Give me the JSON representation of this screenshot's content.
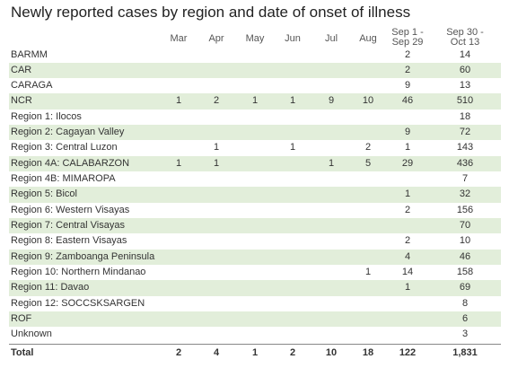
{
  "header": {
    "title": "Newly reported cases by region and date of onset of illness"
  },
  "table": {
    "columns": [
      "Mar",
      "Apr",
      "May",
      "Jun",
      "Jul",
      "Aug",
      "Sep 1 - Sep 29",
      "Sep 30 - Oct 13"
    ],
    "rows": [
      [
        "BARMM",
        null,
        null,
        null,
        null,
        null,
        null,
        2,
        14
      ],
      [
        "CAR",
        null,
        null,
        null,
        null,
        null,
        null,
        2,
        60
      ],
      [
        "CARAGA",
        null,
        null,
        null,
        null,
        null,
        null,
        9,
        13
      ],
      [
        "NCR",
        1,
        2,
        1,
        1,
        9,
        10,
        46,
        510
      ],
      [
        "Region 1: Ilocos",
        null,
        null,
        null,
        null,
        null,
        null,
        null,
        18
      ],
      [
        "Region 2: Cagayan Valley",
        null,
        null,
        null,
        null,
        null,
        null,
        9,
        72
      ],
      [
        "Region 3: Central Luzon",
        null,
        1,
        null,
        1,
        null,
        2,
        1,
        143
      ],
      [
        "Region 4A: CALABARZON",
        1,
        1,
        null,
        null,
        1,
        5,
        29,
        436
      ],
      [
        "Region 4B: MIMAROPA",
        null,
        null,
        null,
        null,
        null,
        null,
        null,
        7
      ],
      [
        "Region 5: Bicol",
        null,
        null,
        null,
        null,
        null,
        null,
        1,
        32
      ],
      [
        "Region 6: Western Visayas",
        null,
        null,
        null,
        null,
        null,
        null,
        2,
        156
      ],
      [
        "Region 7: Central Visayas",
        null,
        null,
        null,
        null,
        null,
        null,
        null,
        70
      ],
      [
        "Region 8: Eastern Visayas",
        null,
        null,
        null,
        null,
        null,
        null,
        2,
        10
      ],
      [
        "Region 9: Zamboanga Peninsula",
        null,
        null,
        null,
        null,
        null,
        null,
        4,
        46
      ],
      [
        "Region 10: Northern Mindanao",
        null,
        null,
        null,
        null,
        null,
        1,
        14,
        158
      ],
      [
        "Region 11: Davao",
        null,
        null,
        null,
        null,
        null,
        null,
        1,
        69
      ],
      [
        "Region 12: SOCCSKSARGEN",
        null,
        null,
        null,
        null,
        null,
        null,
        null,
        8
      ],
      [
        "ROF",
        null,
        null,
        null,
        null,
        null,
        null,
        null,
        6
      ],
      [
        "Unknown",
        null,
        null,
        null,
        null,
        null,
        null,
        null,
        3
      ]
    ],
    "total": [
      "Total",
      2,
      4,
      1,
      2,
      10,
      18,
      122,
      "1,831"
    ]
  }
}
